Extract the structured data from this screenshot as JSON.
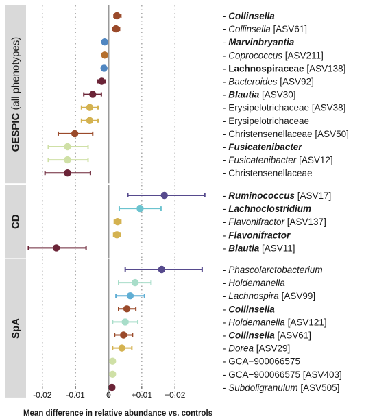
{
  "chart_data": {
    "type": "forest",
    "xlabel": "Mean difference in relative abundance vs. controls",
    "xlim": [
      -0.0245,
      0.0305
    ],
    "x_ticks": [
      -0.02,
      -0.01,
      0,
      0.01,
      0.02
    ],
    "x_tick_labels": [
      "-0.02",
      "-0.01",
      "0",
      "+0.01",
      "+0.02"
    ],
    "grid": true,
    "colors": {
      "brown": "#9a4a2a",
      "olive": "#b5702e",
      "blue": "#4f86c1",
      "maroon": "#6b2437",
      "mustard": "#d4b250",
      "lightgreen": "#cfe0a6",
      "teal": "#6cc3cf",
      "mint": "#a8ddc9",
      "purple": "#564a8d",
      "cerulean": "#5faed4"
    },
    "panels": [
      {
        "strip": "GESPIC",
        "strip_sub": " (all phenotypes)",
        "rows": [
          {
            "label": "- ",
            "bold": "Collinsella",
            "italic": true,
            "ref": "",
            "est": 0.0025,
            "lo": 0.0016,
            "hi": 0.0037,
            "color": "#9a4a2a"
          },
          {
            "label": "- ",
            "name": "Collinsella",
            "italic": true,
            "ref": " [ASV61]",
            "est": 0.0022,
            "lo": 0.0012,
            "hi": 0.0033,
            "color": "#9a4a2a"
          },
          {
            "label": "- ",
            "bold": "Marvinbryantia",
            "italic": true,
            "ref": "",
            "est": -0.0012,
            "lo": -0.0015,
            "hi": -0.0009,
            "color": "#4f86c1"
          },
          {
            "label": "- ",
            "name": "Coprococcus",
            "italic": true,
            "ref": " [ASV211]",
            "est": -0.0012,
            "lo": -0.0015,
            "hi": -0.0009,
            "color": "#b5702e"
          },
          {
            "label": "- ",
            "bold": "Lachnospiraceae",
            "italic": false,
            "ref": " [ASV138]",
            "est": -0.0014,
            "lo": -0.0017,
            "hi": -0.0011,
            "color": "#4f86c1"
          },
          {
            "label": "- ",
            "name": "Bacteroides",
            "italic": true,
            "ref": " [ASV92]",
            "est": -0.0021,
            "lo": -0.0032,
            "hi": -0.0011,
            "color": "#6b2437"
          },
          {
            "label": "- ",
            "bold": "Blautia",
            "italic": true,
            "ref": " [ASV30]",
            "est": -0.0048,
            "lo": -0.0075,
            "hi": -0.0022,
            "color": "#6b2437"
          },
          {
            "label": "- ",
            "name": "Erysipelotrichaceae",
            "italic": false,
            "ref": " [ASV38]",
            "est": -0.0057,
            "lo": -0.0082,
            "hi": -0.0032,
            "color": "#d4b250"
          },
          {
            "label": "- ",
            "name": "Erysipelotrichaceae",
            "italic": false,
            "ref": "",
            "est": -0.0057,
            "lo": -0.0082,
            "hi": -0.0032,
            "color": "#d4b250"
          },
          {
            "label": "- ",
            "name": "Christensenellaceae",
            "italic": false,
            "ref": " [ASV50]",
            "est": -0.0102,
            "lo": -0.0152,
            "hi": -0.0048,
            "color": "#9a4a2a"
          },
          {
            "label": "- ",
            "bold": "Fusicatenibacter",
            "italic": true,
            "ref": "",
            "est": -0.0124,
            "lo": -0.0182,
            "hi": -0.0062,
            "color": "#cfe0a6"
          },
          {
            "label": "- ",
            "name": "Fusicatenibacter",
            "italic": true,
            "ref": " [ASV12]",
            "est": -0.0124,
            "lo": -0.0182,
            "hi": -0.0062,
            "color": "#cfe0a6"
          },
          {
            "label": "- ",
            "name": "Christensenellaceae",
            "italic": false,
            "ref": "",
            "est": -0.0124,
            "lo": -0.0192,
            "hi": -0.0055,
            "color": "#6b2437"
          }
        ]
      },
      {
        "strip": "CD",
        "strip_sub": "",
        "rows": [
          {
            "label": "- ",
            "bold": "Ruminococcus",
            "italic": true,
            "ref": " [ASV17]",
            "est": 0.0168,
            "lo": 0.0058,
            "hi": 0.029,
            "color": "#564a8d"
          },
          {
            "label": "- ",
            "bold": "Lachnoclostridium",
            "italic": true,
            "ref": "",
            "est": 0.0095,
            "lo": 0.0032,
            "hi": 0.0158,
            "color": "#6cc3cf"
          },
          {
            "label": "- ",
            "name": "Flavonifractor",
            "italic": true,
            "ref": " [ASV137]",
            "est": 0.0027,
            "lo": 0.0017,
            "hi": 0.0037,
            "color": "#d4b250"
          },
          {
            "label": "- ",
            "bold": "Flavonifractor",
            "italic": true,
            "ref": "",
            "est": 0.0025,
            "lo": 0.0015,
            "hi": 0.0035,
            "color": "#d4b250"
          },
          {
            "label": "- ",
            "bold": "Blautia",
            "italic": true,
            "ref": " [ASV11]",
            "est": -0.0158,
            "lo": -0.0242,
            "hi": -0.0068,
            "color": "#6b2437"
          }
        ]
      },
      {
        "strip": "SpA",
        "strip_sub": "",
        "rows": [
          {
            "label": "- ",
            "name": "Phascolarctobacterium",
            "italic": true,
            "ref": "",
            "est": 0.016,
            "lo": 0.005,
            "hi": 0.0282,
            "color": "#564a8d"
          },
          {
            "label": "- ",
            "name": "Holdemanella",
            "italic": true,
            "ref": "",
            "est": 0.008,
            "lo": 0.003,
            "hi": 0.0128,
            "color": "#a8ddc9"
          },
          {
            "label": "- ",
            "name": "Lachnospira",
            "italic": true,
            "ref": " [ASV99]",
            "est": 0.0065,
            "lo": 0.0022,
            "hi": 0.0108,
            "color": "#5faed4"
          },
          {
            "label": "- ",
            "bold": "Collinsella",
            "italic": true,
            "ref": "",
            "est": 0.0055,
            "lo": 0.003,
            "hi": 0.0082,
            "color": "#9a4a2a"
          },
          {
            "label": "- ",
            "name": "Holdemanella",
            "italic": true,
            "ref": " [ASV121]",
            "est": 0.005,
            "lo": 0.0012,
            "hi": 0.0088,
            "color": "#a8ddc9"
          },
          {
            "label": "- ",
            "bold": "Collinsella",
            "italic": true,
            "ref": " [ASV61]",
            "est": 0.0045,
            "lo": 0.0018,
            "hi": 0.0072,
            "color": "#9a4a2a"
          },
          {
            "label": "- ",
            "name": "Dorea",
            "italic": true,
            "ref": " [ASV29]",
            "est": 0.004,
            "lo": 0.0012,
            "hi": 0.007,
            "color": "#d4b250"
          },
          {
            "label": "- ",
            "name": "GCA−900066575",
            "italic": false,
            "ref": "",
            "est": 0.0012,
            "lo": 0.0007,
            "hi": 0.0017,
            "color": "#cfe0a6"
          },
          {
            "label": "- ",
            "name": "GCA−900066575",
            "italic": false,
            "ref": " [ASV403]",
            "est": 0.0012,
            "lo": 0.0007,
            "hi": 0.0017,
            "color": "#cfe0a6"
          },
          {
            "label": "- ",
            "name": "Subdoligranulum",
            "italic": true,
            "ref": " [ASV505]",
            "est": 0.001,
            "lo": 0.0006,
            "hi": 0.0014,
            "color": "#6b2437"
          }
        ]
      }
    ]
  }
}
